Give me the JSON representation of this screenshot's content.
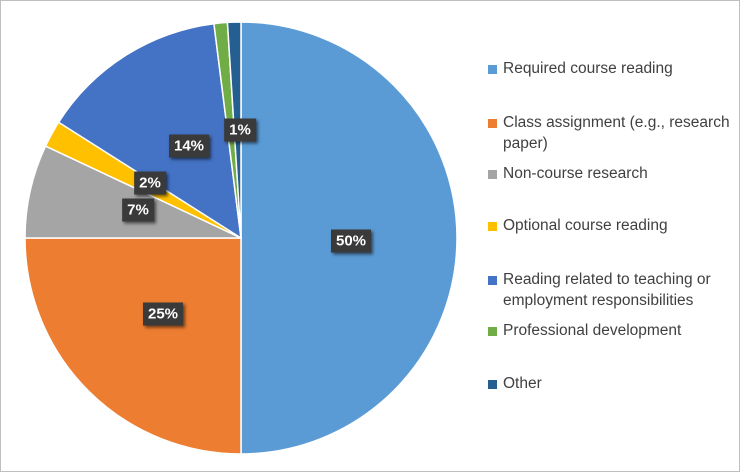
{
  "chart_data": {
    "type": "pie",
    "title": "",
    "slices": [
      {
        "label": "Required course reading",
        "value": 50,
        "value_label": "50%",
        "color": "#5b9bd5"
      },
      {
        "label": "Class assignment (e.g., research paper)",
        "value": 25,
        "value_label": "25%",
        "color": "#ed7d31"
      },
      {
        "label": "Non-course research",
        "value": 7,
        "value_label": "7%",
        "color": "#a5a5a5"
      },
      {
        "label": "Optional course reading",
        "value": 2,
        "value_label": "2%",
        "color": "#ffc000"
      },
      {
        "label": "Reading related to teaching or employment responsibilities",
        "value": 14,
        "value_label": "14%",
        "color": "#4472c4"
      },
      {
        "label": "Professional development",
        "value": 1,
        "value_label": "1%",
        "color": "#70ad47"
      },
      {
        "label": "Other",
        "value": 1,
        "value_label": "",
        "color": "#255e91"
      }
    ],
    "legend_position": "right"
  }
}
